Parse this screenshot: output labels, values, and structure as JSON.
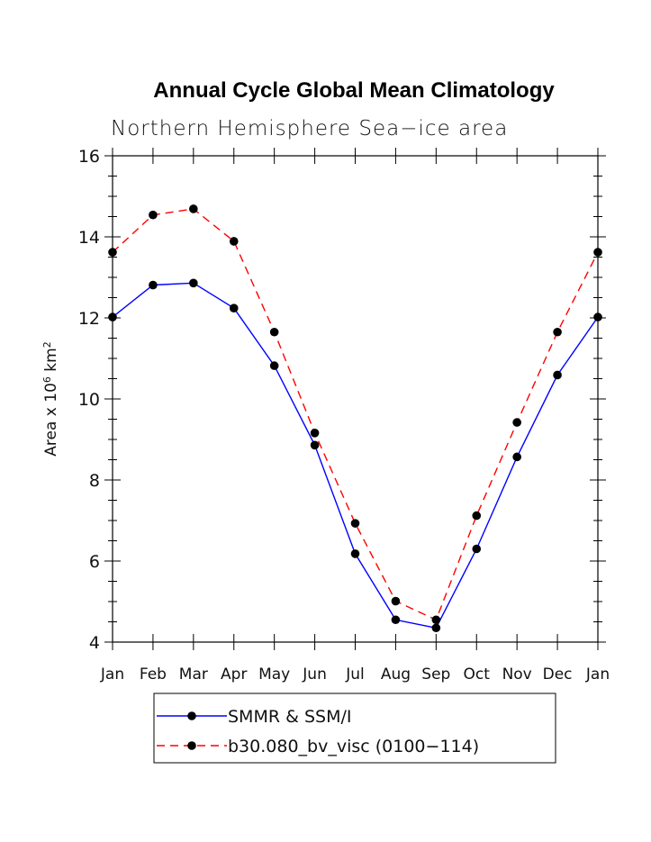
{
  "chart_data": {
    "type": "line",
    "title": "Annual Cycle Global Mean Climatology",
    "subtitle": "Northern Hemisphere Sea−ice area",
    "ylabel_main": "Area x 10",
    "ylabel_exp1": "6",
    "ylabel_unit": " km",
    "ylabel_exp2": "2",
    "categories": [
      "Jan",
      "Feb",
      "Mar",
      "Apr",
      "May",
      "Jun",
      "Jul",
      "Aug",
      "Sep",
      "Oct",
      "Nov",
      "Dec",
      "Jan"
    ],
    "ylim": [
      4,
      16
    ],
    "yticks": [
      4,
      6,
      8,
      10,
      12,
      14,
      16
    ],
    "ytick_labels": [
      "4",
      "6",
      "8",
      "10",
      "12",
      "14",
      "16"
    ],
    "series": [
      {
        "name": "SMMR & SSM/I",
        "color": "#0000ff",
        "dash": "solid",
        "values": [
          12.02,
          12.81,
          12.86,
          12.24,
          10.82,
          8.86,
          6.18,
          4.55,
          4.35,
          6.3,
          8.57,
          10.59,
          12.02
        ]
      },
      {
        "name": "b30.080_bv_visc (0100−114)",
        "color": "#ff0000",
        "dash": "dashed",
        "values": [
          13.62,
          14.54,
          14.69,
          13.89,
          11.65,
          9.16,
          6.93,
          5.01,
          4.55,
          7.12,
          9.42,
          11.65,
          13.62
        ]
      }
    ],
    "legend_position": "bottom"
  }
}
